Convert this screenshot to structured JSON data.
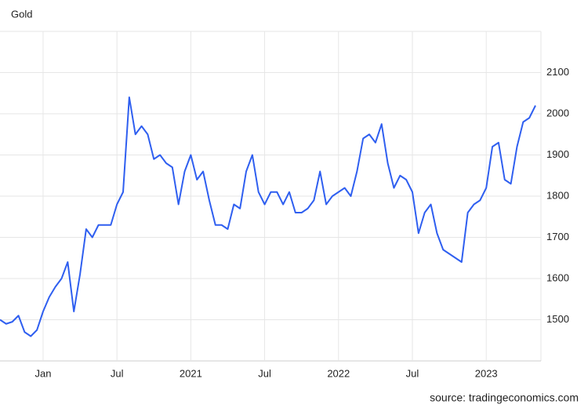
{
  "chart_data": {
    "type": "line",
    "title": "Gold",
    "source": "source: tradingeconomics.com",
    "categories": [
      null,
      null,
      null,
      null,
      null,
      null,
      null,
      "Jan",
      null,
      null,
      null,
      null,
      null,
      null,
      null,
      null,
      null,
      null,
      null,
      "Jul",
      null,
      null,
      null,
      null,
      null,
      null,
      null,
      null,
      null,
      null,
      null,
      "2021",
      null,
      null,
      null,
      null,
      null,
      null,
      null,
      null,
      null,
      null,
      null,
      "Jul",
      null,
      null,
      null,
      null,
      null,
      null,
      null,
      null,
      null,
      null,
      null,
      "2022",
      null,
      null,
      null,
      null,
      null,
      null,
      null,
      null,
      null,
      null,
      null,
      "Jul",
      null,
      null,
      null,
      null,
      null,
      null,
      null,
      null,
      null,
      null,
      null,
      "2023",
      null,
      null,
      null,
      null,
      null,
      null,
      null,
      null
    ],
    "values": [
      1500,
      1490,
      1495,
      1510,
      1470,
      1460,
      1475,
      1520,
      1555,
      1580,
      1600,
      1640,
      1520,
      1610,
      1720,
      1700,
      1730,
      1730,
      1730,
      1780,
      1810,
      2040,
      1950,
      1970,
      1950,
      1890,
      1900,
      1880,
      1870,
      1780,
      1860,
      1900,
      1840,
      1860,
      1790,
      1730,
      1730,
      1720,
      1780,
      1770,
      1860,
      1900,
      1810,
      1780,
      1810,
      1810,
      1780,
      1810,
      1760,
      1760,
      1770,
      1790,
      1860,
      1780,
      1800,
      1810,
      1820,
      1800,
      1860,
      1940,
      1950,
      1930,
      1975,
      1880,
      1820,
      1850,
      1840,
      1810,
      1710,
      1760,
      1780,
      1710,
      1670,
      1660,
      1650,
      1640,
      1760,
      1780,
      1790,
      1820,
      1920,
      1930,
      1840,
      1830,
      1920,
      1980,
      1990,
      2020
    ],
    "color": "#2f5ff0",
    "ylim": [
      1400,
      2200
    ],
    "yticks": [
      1500,
      1600,
      1700,
      1800,
      1900,
      2000,
      2100
    ],
    "grid": true
  }
}
